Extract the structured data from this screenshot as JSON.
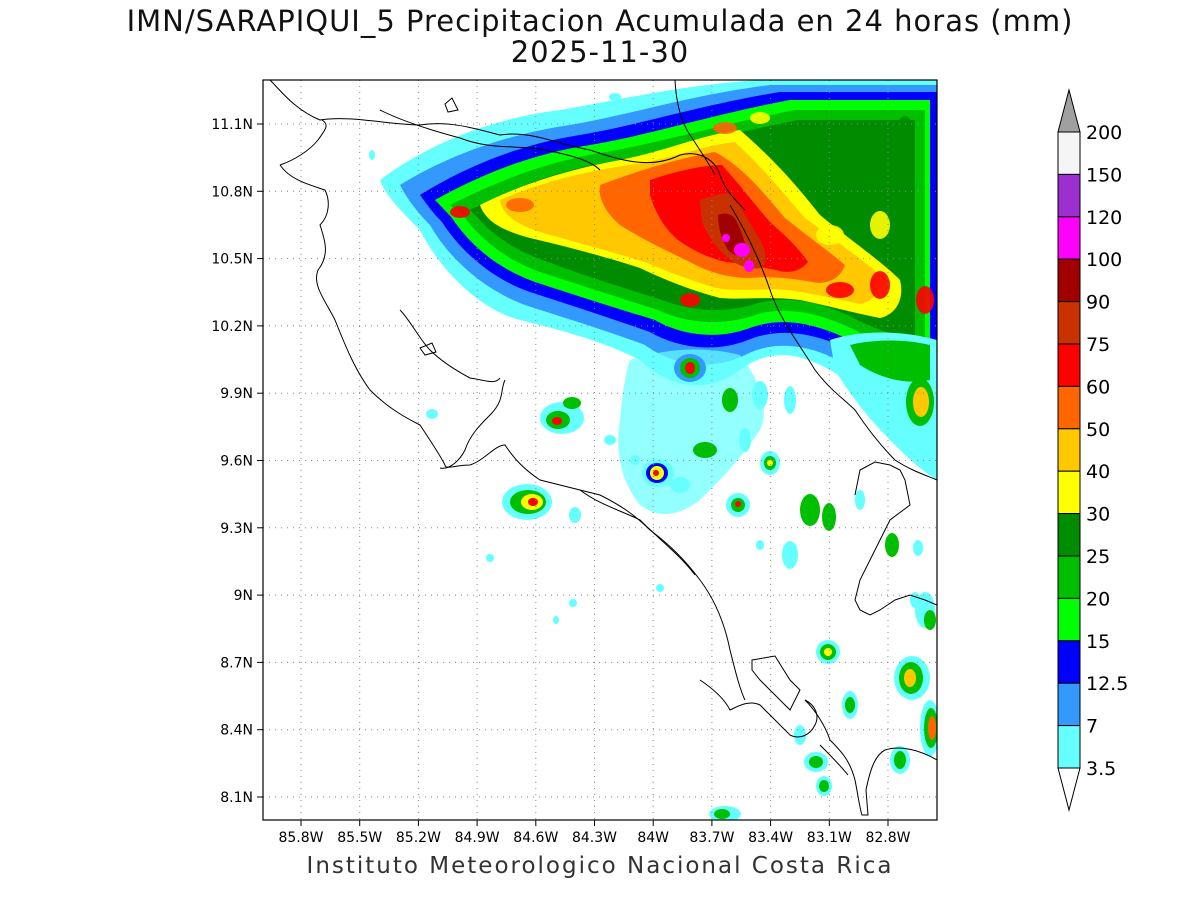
{
  "title_line1": "IMN/SARAPIQUI_5 Precipitacion Acumulada en 24 horas (mm)",
  "title_line2": "2025-11-30",
  "footer": "Instituto Meteorologico Nacional Costa Rica",
  "map": {
    "lat_ticks": [
      "11.1N",
      "10.8N",
      "10.5N",
      "10.2N",
      "9.9N",
      "9.6N",
      "9.3N",
      "9N",
      "8.7N",
      "8.4N",
      "8.1N"
    ],
    "lon_ticks": [
      "85.8W",
      "85.5W",
      "85.2W",
      "84.9W",
      "84.6W",
      "84.3W",
      "84W",
      "83.7W",
      "83.4W",
      "83.1W",
      "82.8W"
    ],
    "grid": true
  },
  "legend": {
    "levels": [
      "200",
      "150",
      "120",
      "100",
      "90",
      "75",
      "60",
      "50",
      "40",
      "30",
      "25",
      "20",
      "15",
      "12.5",
      "7",
      "3.5"
    ],
    "colors": [
      "#f5f5f5",
      "#9b2fd0",
      "#ff00ff",
      "#a00000",
      "#c83200",
      "#ff0000",
      "#ff6600",
      "#ffc800",
      "#ffff00",
      "#008c00",
      "#00be00",
      "#00ff00",
      "#0000ff",
      "#3399ff",
      "#66ffff"
    ],
    "over_color": "#a0a0a0",
    "under_color": "#ffffff"
  }
}
